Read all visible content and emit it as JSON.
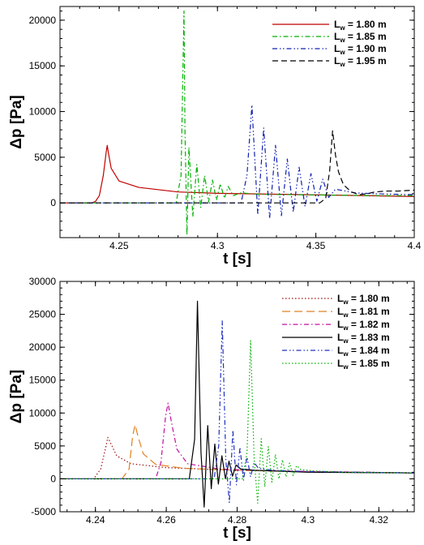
{
  "chart_data": [
    {
      "type": "line",
      "xlabel": "t [s]",
      "ylabel": "Δp [Pa]",
      "xlim": [
        4.22,
        4.4
      ],
      "ylim": [
        -3800,
        21500
      ],
      "xticks": [
        4.25,
        4.3,
        4.35,
        4.4
      ],
      "xtick_labels": [
        "4.25",
        "4.3",
        "4.35",
        "4.4"
      ],
      "yticks": [
        0,
        5000,
        10000,
        15000,
        20000
      ],
      "ytick_labels": [
        "0",
        "5000",
        "10000",
        "15000",
        "20000"
      ],
      "grid": false,
      "legend_position": "top-right",
      "series": [
        {
          "name": "1.80 m",
          "legend_prefix": "L",
          "legend_sub": "w",
          "color": "#c00000",
          "dash": "solid",
          "x": [
            4.22,
            4.236,
            4.238,
            4.24,
            4.242,
            4.2435,
            4.244,
            4.2445,
            4.246,
            4.25,
            4.26,
            4.28,
            4.3,
            4.33,
            4.36,
            4.4
          ],
          "y": [
            0,
            0,
            150,
            800,
            3000,
            5600,
            6300,
            5600,
            3800,
            2400,
            1700,
            1200,
            1050,
            950,
            850,
            700
          ]
        },
        {
          "name": "1.85 m",
          "legend_prefix": "L",
          "legend_sub": "w",
          "color": "#00b000",
          "dash": "dash-dot",
          "x": [
            4.22,
            4.279,
            4.2815,
            4.283,
            4.2835,
            4.2845,
            4.2855,
            4.2875,
            4.2895,
            4.2915,
            4.2935,
            4.2955,
            4.2975,
            4.2995,
            4.3015,
            4.3035,
            4.3055,
            4.308,
            4.312,
            4.32,
            4.34,
            4.36,
            4.38,
            4.4
          ],
          "y": [
            0,
            0,
            3000,
            21000,
            8000,
            -3500,
            6100,
            -1500,
            4200,
            -500,
            3000,
            100,
            2500,
            300,
            2100,
            500,
            1800,
            800,
            1100,
            950,
            900,
            850,
            800,
            800
          ]
        },
        {
          "name": "1.90 m",
          "legend_prefix": "L",
          "legend_sub": "w",
          "color": "#1020b0",
          "dash": "dash-dot-dot",
          "x": [
            4.22,
            4.312,
            4.315,
            4.3175,
            4.3205,
            4.3235,
            4.3265,
            4.3295,
            4.3325,
            4.3355,
            4.3385,
            4.3415,
            4.3445,
            4.3475,
            4.3505,
            4.3535,
            4.3565,
            4.36,
            4.37,
            4.38,
            4.4
          ],
          "y": [
            0,
            0,
            3000,
            10700,
            -1300,
            8200,
            -1700,
            6300,
            -1400,
            4800,
            -1000,
            3900,
            -400,
            3200,
            200,
            2600,
            600,
            1500,
            1100,
            1000,
            900
          ]
        },
        {
          "name": "1.95 m",
          "legend_prefix": "L",
          "legend_sub": "w",
          "color": "#000000",
          "dash": "dash",
          "x": [
            4.22,
            4.352,
            4.355,
            4.357,
            4.3585,
            4.36,
            4.3615,
            4.364,
            4.368,
            4.372,
            4.376,
            4.38,
            4.386,
            4.392,
            4.4
          ],
          "y": [
            0,
            0,
            500,
            3500,
            7900,
            5200,
            3400,
            2000,
            1200,
            900,
            1000,
            1200,
            1300,
            1300,
            1400
          ]
        }
      ]
    },
    {
      "type": "line",
      "xlabel": "t [s]",
      "ylabel": "Δp [Pa]",
      "xlim": [
        4.23,
        4.33
      ],
      "ylim": [
        -5000,
        30000
      ],
      "xticks": [
        4.24,
        4.26,
        4.28,
        4.3,
        4.32
      ],
      "xtick_labels": [
        "4.24",
        "4.26",
        "4.28",
        "4.3",
        "4.32"
      ],
      "yticks": [
        -5000,
        0,
        5000,
        10000,
        15000,
        20000,
        25000,
        30000
      ],
      "ytick_labels": [
        "-5000",
        "0",
        "5000",
        "10000",
        "15000",
        "20000",
        "25000",
        "30000"
      ],
      "grid": false,
      "legend_position": "top-right",
      "series": [
        {
          "name": "1.80 m",
          "legend_prefix": "L",
          "legend_sub": "w",
          "color": "#a01010",
          "dash": "dot",
          "x": [
            4.23,
            4.2395,
            4.2415,
            4.243,
            4.2435,
            4.2445,
            4.246,
            4.25,
            4.26,
            4.27,
            4.28,
            4.3,
            4.33
          ],
          "y": [
            0,
            0,
            1500,
            5000,
            6300,
            5200,
            3500,
            2300,
            1700,
            1500,
            1300,
            1100,
            900
          ]
        },
        {
          "name": "1.81 m",
          "legend_prefix": "L",
          "legend_sub": "w",
          "color": "#e08020",
          "dash": "long-dash",
          "x": [
            4.23,
            4.2475,
            4.2495,
            4.2505,
            4.2512,
            4.252,
            4.2535,
            4.257,
            4.265,
            4.28,
            4.3,
            4.33
          ],
          "y": [
            0,
            0,
            1500,
            6500,
            8200,
            6500,
            3800,
            2200,
            1600,
            1300,
            1100,
            900
          ]
        },
        {
          "name": "1.82 m",
          "legend_prefix": "L",
          "legend_sub": "w",
          "color": "#c010a0",
          "dash": "dash-dot",
          "x": [
            4.23,
            4.257,
            4.2585,
            4.2598,
            4.2605,
            4.2615,
            4.263,
            4.266,
            4.275,
            4.29,
            4.33
          ],
          "y": [
            0,
            0,
            2500,
            9500,
            11500,
            8500,
            4500,
            2300,
            1500,
            1200,
            900
          ]
        },
        {
          "name": "1.83 m",
          "legend_prefix": "L",
          "legend_sub": "w",
          "color": "#000000",
          "dash": "solid",
          "x": [
            4.23,
            4.2665,
            4.268,
            4.2688,
            4.2698,
            4.2707,
            4.2717,
            4.2727,
            4.2737,
            4.2747,
            4.2757,
            4.2767,
            4.2777,
            4.2787,
            4.2797,
            4.281,
            4.285,
            4.29,
            4.3,
            4.33
          ],
          "y": [
            0,
            0,
            6000,
            27000,
            4000,
            -4300,
            8100,
            -1500,
            5300,
            -800,
            3500,
            0,
            2700,
            400,
            2100,
            1500,
            1300,
            1200,
            1000,
            900
          ]
        },
        {
          "name": "1.84 m",
          "legend_prefix": "L",
          "legend_sub": "w",
          "color": "#2030c0",
          "dash": "dash-dot-dot",
          "x": [
            4.23,
            4.2735,
            4.2748,
            4.2758,
            4.2768,
            4.2778,
            4.2788,
            4.2798,
            4.2808,
            4.2818,
            4.2828,
            4.2838,
            4.2848,
            4.286,
            4.29,
            4.3,
            4.33
          ],
          "y": [
            0,
            0,
            5000,
            24000,
            3000,
            -3600,
            7400,
            -900,
            4800,
            -200,
            3300,
            300,
            2500,
            1600,
            1300,
            1100,
            900
          ]
        },
        {
          "name": "1.85 m",
          "legend_prefix": "L",
          "legend_sub": "w",
          "color": "#00b000",
          "dash": "dot",
          "x": [
            4.23,
            4.2815,
            4.2828,
            4.2838,
            4.2848,
            4.2858,
            4.2868,
            4.2878,
            4.2888,
            4.2898,
            4.2908,
            4.2918,
            4.2928,
            4.2938,
            4.2948,
            4.2958,
            4.2968,
            4.298,
            4.302,
            4.31,
            4.33
          ],
          "y": [
            0,
            0,
            4000,
            21000,
            3000,
            -3700,
            6100,
            -1200,
            4900,
            -500,
            3700,
            0,
            2900,
            300,
            2400,
            500,
            2000,
            1400,
            1200,
            1000,
            900
          ]
        }
      ]
    }
  ]
}
